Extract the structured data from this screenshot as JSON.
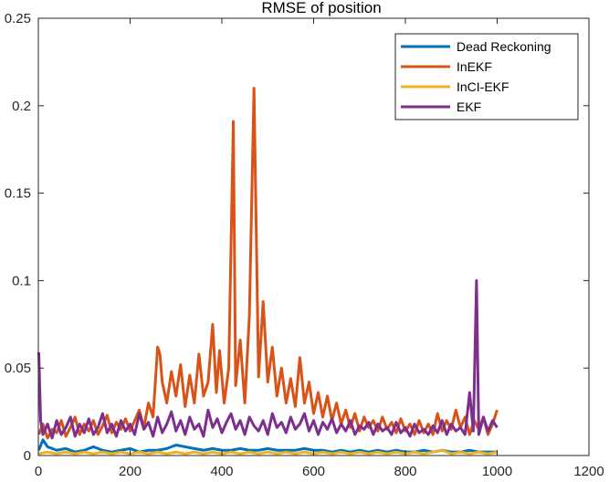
{
  "chart_data": {
    "type": "line",
    "title": "RMSE of position",
    "xlabel": "",
    "ylabel": "",
    "xlim": [
      0,
      1200
    ],
    "ylim": [
      0,
      0.25
    ],
    "xticks": [
      "0",
      "200",
      "400",
      "600",
      "800",
      "1000",
      "1200"
    ],
    "yticks": [
      "0",
      "0.05",
      "0.1",
      "0.15",
      "0.2",
      "0.25"
    ],
    "legend_position": "top-right",
    "grid": false,
    "series": [
      {
        "name": "Dead Reckoning",
        "color": "#0072BD",
        "x": [
          1,
          10,
          20,
          40,
          60,
          80,
          100,
          120,
          140,
          160,
          180,
          200,
          220,
          240,
          260,
          280,
          300,
          320,
          340,
          360,
          380,
          400,
          420,
          440,
          460,
          480,
          500,
          520,
          540,
          560,
          580,
          600,
          620,
          640,
          660,
          680,
          700,
          720,
          740,
          760,
          780,
          800,
          820,
          840,
          860,
          880,
          900,
          920,
          940,
          960,
          980,
          1000
        ],
        "y": [
          0.003,
          0.009,
          0.005,
          0.003,
          0.004,
          0.002,
          0.003,
          0.005,
          0.003,
          0.002,
          0.003,
          0.004,
          0.002,
          0.003,
          0.003,
          0.004,
          0.006,
          0.005,
          0.004,
          0.003,
          0.004,
          0.003,
          0.003,
          0.004,
          0.003,
          0.003,
          0.004,
          0.003,
          0.003,
          0.003,
          0.004,
          0.003,
          0.003,
          0.002,
          0.003,
          0.002,
          0.003,
          0.002,
          0.003,
          0.002,
          0.003,
          0.002,
          0.002,
          0.003,
          0.002,
          0.003,
          0.002,
          0.002,
          0.003,
          0.002,
          0.002,
          0.002
        ]
      },
      {
        "name": "InEKF",
        "color": "#D95319",
        "x": [
          1,
          10,
          20,
          30,
          40,
          50,
          60,
          70,
          80,
          90,
          100,
          110,
          120,
          130,
          140,
          150,
          160,
          170,
          180,
          190,
          200,
          210,
          220,
          230,
          240,
          250,
          260,
          265,
          270,
          280,
          290,
          300,
          310,
          320,
          330,
          340,
          350,
          360,
          370,
          380,
          388,
          395,
          405,
          415,
          425,
          430,
          440,
          450,
          460,
          470,
          480,
          490,
          500,
          510,
          520,
          530,
          540,
          550,
          560,
          570,
          580,
          590,
          600,
          610,
          620,
          630,
          640,
          650,
          660,
          670,
          680,
          690,
          700,
          710,
          720,
          730,
          740,
          750,
          760,
          770,
          780,
          790,
          800,
          810,
          820,
          830,
          840,
          850,
          860,
          870,
          880,
          890,
          900,
          910,
          920,
          930,
          940,
          950,
          960,
          970,
          980,
          990,
          1000
        ],
        "y": [
          0.012,
          0.018,
          0.01,
          0.015,
          0.013,
          0.02,
          0.011,
          0.016,
          0.022,
          0.012,
          0.018,
          0.014,
          0.02,
          0.012,
          0.017,
          0.023,
          0.013,
          0.019,
          0.015,
          0.021,
          0.014,
          0.02,
          0.026,
          0.016,
          0.03,
          0.022,
          0.062,
          0.058,
          0.042,
          0.03,
          0.048,
          0.034,
          0.052,
          0.028,
          0.046,
          0.03,
          0.058,
          0.034,
          0.042,
          0.075,
          0.036,
          0.06,
          0.03,
          0.05,
          0.191,
          0.04,
          0.066,
          0.03,
          0.08,
          0.21,
          0.045,
          0.088,
          0.042,
          0.062,
          0.034,
          0.05,
          0.03,
          0.044,
          0.028,
          0.056,
          0.03,
          0.042,
          0.024,
          0.036,
          0.022,
          0.034,
          0.02,
          0.03,
          0.018,
          0.026,
          0.016,
          0.024,
          0.014,
          0.022,
          0.016,
          0.02,
          0.014,
          0.022,
          0.015,
          0.019,
          0.013,
          0.021,
          0.014,
          0.018,
          0.012,
          0.02,
          0.013,
          0.018,
          0.012,
          0.024,
          0.014,
          0.02,
          0.015,
          0.026,
          0.016,
          0.022,
          0.012,
          0.02,
          0.015,
          0.022,
          0.012,
          0.018,
          0.026
        ]
      },
      {
        "name": "InCI-EKF",
        "color": "#EDB120",
        "x": [
          1,
          20,
          40,
          60,
          80,
          100,
          120,
          140,
          160,
          180,
          200,
          220,
          240,
          260,
          280,
          300,
          320,
          340,
          360,
          380,
          400,
          420,
          440,
          460,
          480,
          500,
          520,
          540,
          560,
          580,
          600,
          620,
          640,
          660,
          680,
          700,
          720,
          740,
          760,
          780,
          800,
          820,
          840,
          860,
          880,
          900,
          920,
          940,
          960,
          980,
          1000
        ],
        "y": [
          0.001,
          0.002,
          0.001,
          0.002,
          0.001,
          0.002,
          0.001,
          0.002,
          0.001,
          0.002,
          0.001,
          0.002,
          0.001,
          0.002,
          0.001,
          0.002,
          0.001,
          0.002,
          0.001,
          0.002,
          0.001,
          0.002,
          0.001,
          0.002,
          0.001,
          0.002,
          0.001,
          0.002,
          0.001,
          0.002,
          0.001,
          0.002,
          0.001,
          0.002,
          0.001,
          0.002,
          0.001,
          0.002,
          0.001,
          0.002,
          0.001,
          0.002,
          0.001,
          0.002,
          0.003,
          0.001,
          0.002,
          0.001,
          0.002,
          0.001,
          0.002
        ]
      },
      {
        "name": "EKF",
        "color": "#7E2F8E",
        "x": [
          1,
          5,
          10,
          20,
          30,
          40,
          50,
          60,
          70,
          80,
          90,
          100,
          110,
          120,
          130,
          140,
          150,
          160,
          170,
          180,
          190,
          200,
          210,
          220,
          230,
          240,
          250,
          260,
          270,
          280,
          290,
          300,
          310,
          320,
          330,
          340,
          350,
          360,
          370,
          380,
          390,
          400,
          410,
          420,
          430,
          440,
          450,
          460,
          470,
          480,
          490,
          500,
          510,
          520,
          530,
          540,
          550,
          560,
          570,
          580,
          590,
          600,
          610,
          620,
          630,
          640,
          650,
          660,
          670,
          680,
          690,
          700,
          710,
          720,
          730,
          740,
          750,
          760,
          770,
          780,
          790,
          800,
          810,
          820,
          830,
          840,
          850,
          860,
          870,
          880,
          890,
          900,
          910,
          920,
          930,
          940,
          948,
          955,
          960,
          970,
          980,
          990,
          1000
        ],
        "y": [
          0.059,
          0.02,
          0.012,
          0.018,
          0.01,
          0.02,
          0.012,
          0.016,
          0.022,
          0.011,
          0.018,
          0.013,
          0.021,
          0.012,
          0.016,
          0.024,
          0.013,
          0.018,
          0.011,
          0.02,
          0.014,
          0.018,
          0.012,
          0.024,
          0.015,
          0.019,
          0.011,
          0.022,
          0.013,
          0.018,
          0.025,
          0.014,
          0.02,
          0.012,
          0.022,
          0.015,
          0.018,
          0.011,
          0.026,
          0.016,
          0.021,
          0.013,
          0.019,
          0.024,
          0.015,
          0.02,
          0.012,
          0.022,
          0.017,
          0.014,
          0.02,
          0.012,
          0.024,
          0.016,
          0.019,
          0.013,
          0.022,
          0.015,
          0.018,
          0.024,
          0.014,
          0.02,
          0.012,
          0.019,
          0.015,
          0.021,
          0.013,
          0.018,
          0.014,
          0.02,
          0.012,
          0.017,
          0.015,
          0.019,
          0.012,
          0.018,
          0.014,
          0.016,
          0.012,
          0.019,
          0.013,
          0.016,
          0.011,
          0.018,
          0.013,
          0.015,
          0.012,
          0.017,
          0.013,
          0.02,
          0.012,
          0.018,
          0.014,
          0.016,
          0.012,
          0.036,
          0.014,
          0.1,
          0.012,
          0.022,
          0.014,
          0.02,
          0.016
        ]
      }
    ]
  }
}
